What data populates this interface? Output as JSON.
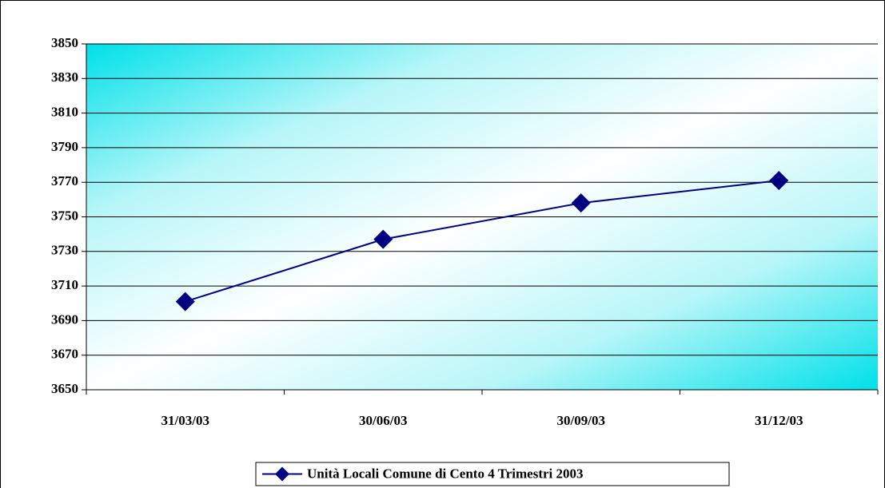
{
  "chart_data": {
    "type": "line",
    "categories": [
      "31/03/03",
      "30/06/03",
      "30/09/03",
      "31/12/03"
    ],
    "series": [
      {
        "name": "Unità Locali Comune di Cento 4 Trimestri 2003",
        "color": "#000080",
        "values": [
          3701,
          3737,
          3758,
          3771
        ]
      }
    ],
    "ylim": [
      3650,
      3850
    ],
    "yticks": [
      3650,
      3670,
      3690,
      3710,
      3730,
      3750,
      3770,
      3790,
      3810,
      3830,
      3850
    ],
    "grid": true,
    "legend": "bottom"
  }
}
